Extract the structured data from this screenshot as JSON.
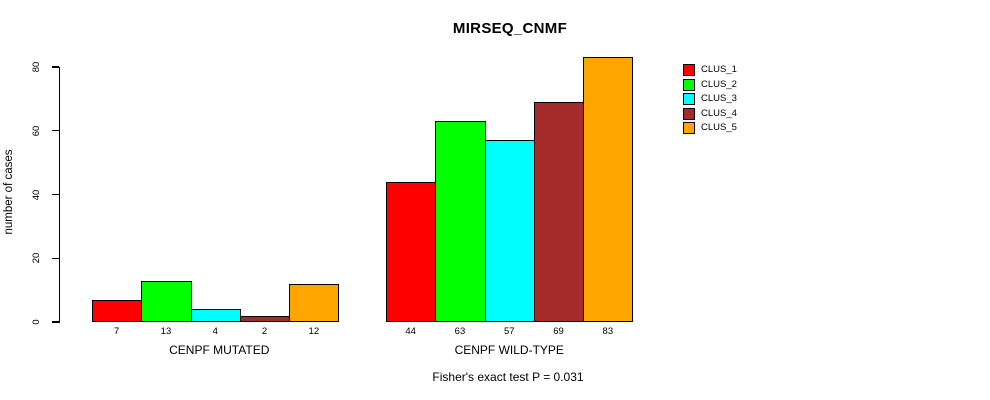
{
  "chart_data": {
    "type": "bar",
    "title": "MIRSEQ_CNMF",
    "ylabel": "number of cases",
    "xlabel": "",
    "footnote": "Fisher's exact test P = 0.031",
    "categories": [
      "CENPF MUTATED",
      "CENPF WILD-TYPE"
    ],
    "series": [
      {
        "name": "CLUS_1",
        "color": "#FF0000",
        "values": [
          7,
          44
        ]
      },
      {
        "name": "CLUS_2",
        "color": "#00FF00",
        "values": [
          13,
          63
        ]
      },
      {
        "name": "CLUS_3",
        "color": "#00FFFF",
        "values": [
          4,
          57
        ]
      },
      {
        "name": "CLUS_4",
        "color": "#A52A2A",
        "values": [
          2,
          69
        ]
      },
      {
        "name": "CLUS_5",
        "color": "#FFA500",
        "values": [
          12,
          83
        ]
      }
    ],
    "bar_value_labels": [
      [
        7,
        13,
        4,
        2,
        12
      ],
      [
        44,
        63,
        57,
        69,
        83
      ]
    ],
    "ylim": [
      0,
      80
    ],
    "yticks": [
      0,
      20,
      40,
      60,
      80
    ],
    "grid": false,
    "legend_position": "right",
    "colors": {
      "background": "#FFFFFF",
      "axis": "#000000",
      "text": "#000000"
    }
  }
}
